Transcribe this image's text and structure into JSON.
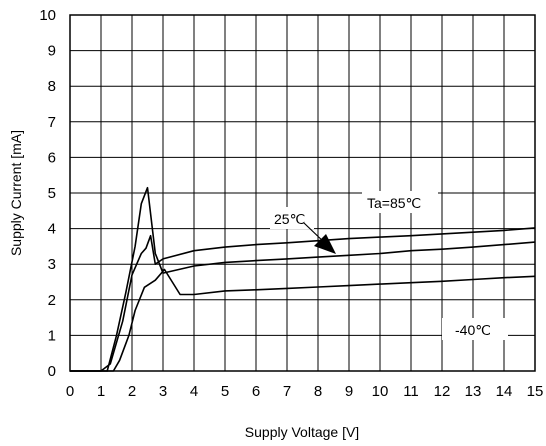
{
  "chart_data": {
    "type": "line",
    "title": "",
    "xlabel": "Supply Voltage [V]",
    "ylabel": "Supply Current [mA]",
    "xlim": [
      0,
      15
    ],
    "ylim": [
      0,
      10
    ],
    "xticks": [
      0,
      1,
      2,
      3,
      4,
      5,
      6,
      7,
      8,
      9,
      10,
      11,
      12,
      13,
      14,
      15
    ],
    "yticks": [
      0,
      1,
      2,
      3,
      4,
      5,
      6,
      7,
      8,
      9,
      10
    ],
    "grid": true,
    "series": [
      {
        "name": "Ta=85℃",
        "x": [
          0,
          1.0,
          1.3,
          1.7,
          2.0,
          2.3,
          2.45,
          2.6,
          2.75,
          3.0,
          4.0,
          5.0,
          6.0,
          7.0,
          8.0,
          9.0,
          10.0,
          11.0,
          12.0,
          13.0,
          14.0,
          15.0
        ],
        "y": [
          0,
          0,
          0.2,
          1.4,
          2.7,
          3.3,
          3.45,
          3.8,
          3.0,
          3.15,
          3.38,
          3.48,
          3.55,
          3.6,
          3.66,
          3.72,
          3.76,
          3.8,
          3.85,
          3.9,
          3.95,
          4.02
        ]
      },
      {
        "name": "25℃",
        "x": [
          0,
          1.2,
          1.5,
          1.8,
          2.1,
          2.3,
          2.5,
          2.75,
          3.0,
          4.0,
          5.0,
          6.0,
          7.0,
          8.0,
          9.0,
          10.0,
          11.0,
          12.0,
          13.0,
          14.0,
          15.0
        ],
        "y": [
          0,
          0,
          1.0,
          2.2,
          3.5,
          4.7,
          5.15,
          3.3,
          2.75,
          2.95,
          3.05,
          3.1,
          3.15,
          3.2,
          3.25,
          3.3,
          3.38,
          3.42,
          3.48,
          3.55,
          3.62
        ]
      },
      {
        "name": "-40℃",
        "x": [
          0,
          1.4,
          1.6,
          1.9,
          2.1,
          2.4,
          2.75,
          3.05,
          3.55,
          4.0,
          5.0,
          6.0,
          7.0,
          8.0,
          9.0,
          10.0,
          11.0,
          12.0,
          13.0,
          14.0,
          15.0
        ],
        "y": [
          0,
          0,
          0.3,
          1.0,
          1.7,
          2.35,
          2.55,
          2.85,
          2.15,
          2.15,
          2.25,
          2.28,
          2.32,
          2.36,
          2.4,
          2.44,
          2.48,
          2.52,
          2.57,
          2.62,
          2.66
        ]
      }
    ],
    "annotations": [
      {
        "text": "Ta=85℃"
      },
      {
        "text": "25℃"
      },
      {
        "text": "-40℃"
      }
    ],
    "colors": {
      "line": "#000000",
      "grid": "#000000",
      "background": "#ffffff"
    }
  }
}
